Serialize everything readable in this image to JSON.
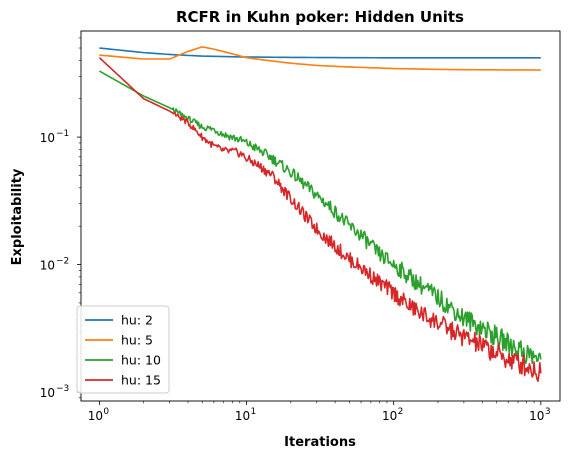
{
  "chart_data": {
    "type": "line",
    "title": "RCFR in Kuhn poker: Hidden Units",
    "xlabel": "Iterations",
    "ylabel": "Exploitability",
    "xscale": "log",
    "yscale": "log",
    "xlim": [
      0.75,
      1350
    ],
    "ylim": [
      0.00085,
      0.68
    ],
    "xticks": [
      {
        "value": 1,
        "base": "10",
        "exp": "0"
      },
      {
        "value": 10,
        "base": "10",
        "exp": "1"
      },
      {
        "value": 100,
        "base": "10",
        "exp": "2"
      },
      {
        "value": 1000,
        "base": "10",
        "exp": "3"
      }
    ],
    "yticks": [
      {
        "value": 0.001,
        "base": "10",
        "exp": "−3"
      },
      {
        "value": 0.01,
        "base": "10",
        "exp": "−2"
      },
      {
        "value": 0.1,
        "base": "10",
        "exp": "−1"
      }
    ],
    "grid": false,
    "legend_position": "lower-left",
    "series": [
      {
        "name": "hu: 2",
        "color": "#1f77b4",
        "points": [
          [
            1,
            0.5
          ],
          [
            2,
            0.46
          ],
          [
            3,
            0.445
          ],
          [
            5,
            0.432
          ],
          [
            10,
            0.425
          ],
          [
            20,
            0.422
          ],
          [
            50,
            0.42
          ],
          [
            100,
            0.419
          ],
          [
            200,
            0.419
          ],
          [
            500,
            0.419
          ],
          [
            1000,
            0.419
          ]
        ]
      },
      {
        "name": "hu: 5",
        "color": "#ff7f0e",
        "points": [
          [
            1,
            0.44
          ],
          [
            2,
            0.41
          ],
          [
            3,
            0.41
          ],
          [
            4,
            0.47
          ],
          [
            5,
            0.51
          ],
          [
            6,
            0.49
          ],
          [
            8,
            0.45
          ],
          [
            10,
            0.42
          ],
          [
            15,
            0.395
          ],
          [
            20,
            0.38
          ],
          [
            30,
            0.365
          ],
          [
            50,
            0.355
          ],
          [
            100,
            0.345
          ],
          [
            200,
            0.34
          ],
          [
            300,
            0.338
          ],
          [
            500,
            0.337
          ],
          [
            1000,
            0.336
          ]
        ]
      },
      {
        "name": "hu: 10",
        "color": "#2ca02c",
        "points": [
          [
            1,
            0.33
          ],
          [
            2,
            0.21
          ],
          [
            3,
            0.17
          ],
          [
            4,
            0.14
          ],
          [
            5,
            0.12
          ],
          [
            6,
            0.115
          ],
          [
            7,
            0.105
          ],
          [
            8,
            0.1
          ],
          [
            9,
            0.095
          ],
          [
            10,
            0.09
          ],
          [
            12,
            0.08
          ],
          [
            15,
            0.068
          ],
          [
            18,
            0.058
          ],
          [
            20,
            0.053
          ],
          [
            25,
            0.042
          ],
          [
            30,
            0.035
          ],
          [
            35,
            0.03
          ],
          [
            40,
            0.026
          ],
          [
            50,
            0.02
          ],
          [
            60,
            0.017
          ],
          [
            70,
            0.014
          ],
          [
            80,
            0.012
          ],
          [
            100,
            0.01
          ],
          [
            120,
            0.0085
          ],
          [
            150,
            0.007
          ],
          [
            200,
            0.0055
          ],
          [
            250,
            0.0045
          ],
          [
            300,
            0.0038
          ],
          [
            400,
            0.0032
          ],
          [
            500,
            0.0027
          ],
          [
            600,
            0.0024
          ],
          [
            700,
            0.0022
          ],
          [
            800,
            0.002
          ],
          [
            900,
            0.0019
          ],
          [
            1000,
            0.0018
          ]
        ]
      },
      {
        "name": "hu: 15",
        "color": "#d62728",
        "points": [
          [
            1,
            0.42
          ],
          [
            2,
            0.2
          ],
          [
            3,
            0.16
          ],
          [
            4,
            0.13
          ],
          [
            5,
            0.1
          ],
          [
            6,
            0.085
          ],
          [
            7,
            0.078
          ],
          [
            8,
            0.077
          ],
          [
            9,
            0.075
          ],
          [
            10,
            0.068
          ],
          [
            12,
            0.06
          ],
          [
            15,
            0.05
          ],
          [
            18,
            0.038
          ],
          [
            20,
            0.033
          ],
          [
            25,
            0.024
          ],
          [
            30,
            0.019
          ],
          [
            35,
            0.016
          ],
          [
            40,
            0.014
          ],
          [
            50,
            0.011
          ],
          [
            60,
            0.0095
          ],
          [
            70,
            0.0082
          ],
          [
            80,
            0.0072
          ],
          [
            100,
            0.006
          ],
          [
            120,
            0.005
          ],
          [
            150,
            0.0042
          ],
          [
            200,
            0.0035
          ],
          [
            250,
            0.003
          ],
          [
            300,
            0.0027
          ],
          [
            400,
            0.0023
          ],
          [
            500,
            0.002
          ],
          [
            600,
            0.0018
          ],
          [
            700,
            0.0017
          ],
          [
            800,
            0.0016
          ],
          [
            900,
            0.0015
          ],
          [
            1000,
            0.0014
          ]
        ]
      }
    ]
  }
}
